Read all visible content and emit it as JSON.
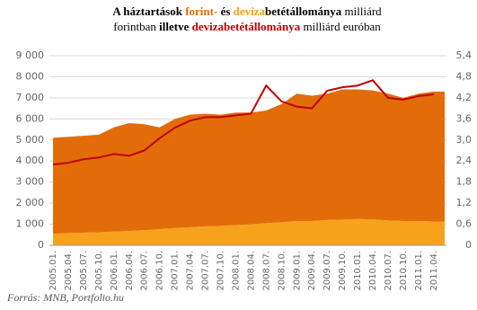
{
  "chart_data": {
    "type": "stacked-area-line",
    "title_lines": [
      [
        {
          "text": "A háztartások ",
          "color": "#000000",
          "bold": true
        },
        {
          "text": "forint-",
          "color": "#e36c0a",
          "bold": true
        },
        {
          "text": " és ",
          "color": "#000000",
          "bold": true
        },
        {
          "text": "deviza",
          "color": "#f5a01a",
          "bold": true
        },
        {
          "text": "betétállománya",
          "color": "#000000",
          "bold": true
        },
        {
          "text": "  milliárd",
          "color": "#000000",
          "bold": false
        }
      ],
      [
        {
          "text": "forintban ",
          "color": "#000000",
          "bold": false
        },
        {
          "text": "illetve ",
          "color": "#000000",
          "bold": true
        },
        {
          "text": "devizabetétállománya",
          "color": "#c00000",
          "bold": true
        },
        {
          "text": "  milliárd euróban",
          "color": "#000000",
          "bold": false
        }
      ]
    ],
    "categories": [
      "2005.01.",
      "2005.04.",
      "2005.07.",
      "2005.10.",
      "2006.01.",
      "2006.04.",
      "2006.07.",
      "2006.10.",
      "2007.01.",
      "2007.04.",
      "2007.07.",
      "2007.10.",
      "2008.01.",
      "2008.04.",
      "2008.07.",
      "2008.10.",
      "2009.01.",
      "2009.04.",
      "2009.07.",
      "2009.10.",
      "2010.01.",
      "2010.04.",
      "2010.07.",
      "2010.10.",
      "2011.01.",
      "2011.04."
    ],
    "series": [
      {
        "kind": "area",
        "color": "#f7a21b",
        "values": [
          550,
          580,
          600,
          620,
          650,
          680,
          720,
          760,
          820,
          860,
          900,
          920,
          960,
          1000,
          1050,
          1100,
          1150,
          1150,
          1200,
          1220,
          1250,
          1230,
          1180,
          1150,
          1150,
          1130
        ]
      },
      {
        "kind": "area",
        "color": "#e36c0a",
        "values": [
          4550,
          4570,
          4600,
          4630,
          4950,
          5120,
          5030,
          4840,
          5180,
          5340,
          5350,
          5280,
          5340,
          5300,
          5350,
          5600,
          6050,
          5950,
          6000,
          6180,
          6150,
          6120,
          6020,
          5850,
          6050,
          6170
        ]
      },
      {
        "kind": "line",
        "axis": "y2",
        "color": "#c00000",
        "values": [
          2.3,
          2.35,
          2.45,
          2.5,
          2.6,
          2.55,
          2.7,
          3.05,
          3.35,
          3.55,
          3.65,
          3.65,
          3.7,
          3.75,
          4.55,
          4.1,
          3.95,
          3.9,
          4.4,
          4.5,
          4.55,
          4.7,
          4.2,
          4.15,
          4.25,
          4.3
        ]
      }
    ],
    "ylim": [
      0,
      9000
    ],
    "yticks": [
      0,
      {
        "value": 1000,
        "label": "1 000"
      },
      {
        "value": 2000,
        "label": "2 000"
      },
      {
        "value": 3000,
        "label": "3 000"
      },
      {
        "value": 4000,
        "label": "4 000"
      },
      {
        "value": 5000,
        "label": "5 000"
      },
      {
        "value": 6000,
        "label": "6 000"
      },
      {
        "value": 7000,
        "label": "7 000"
      },
      {
        "value": 8000,
        "label": "8 000"
      },
      {
        "value": 9000,
        "label": "9 000"
      }
    ],
    "y2lim": [
      0,
      5.4
    ],
    "y2ticks": [
      0,
      {
        "value": 0.6,
        "label": "0,6"
      },
      {
        "value": 1.2,
        "label": "1,2"
      },
      {
        "value": 1.8,
        "label": "1,8"
      },
      {
        "value": 2.4,
        "label": "2,4"
      },
      {
        "value": 3.0,
        "label": "3,0"
      },
      {
        "value": 3.6,
        "label": "3,6"
      },
      {
        "value": 4.2,
        "label": "4,2"
      },
      {
        "value": 4.8,
        "label": "4,8"
      },
      {
        "value": 5.4,
        "label": "5,4"
      }
    ],
    "grid": true,
    "source": "Forrás: MNB, Portfolio.hu"
  }
}
